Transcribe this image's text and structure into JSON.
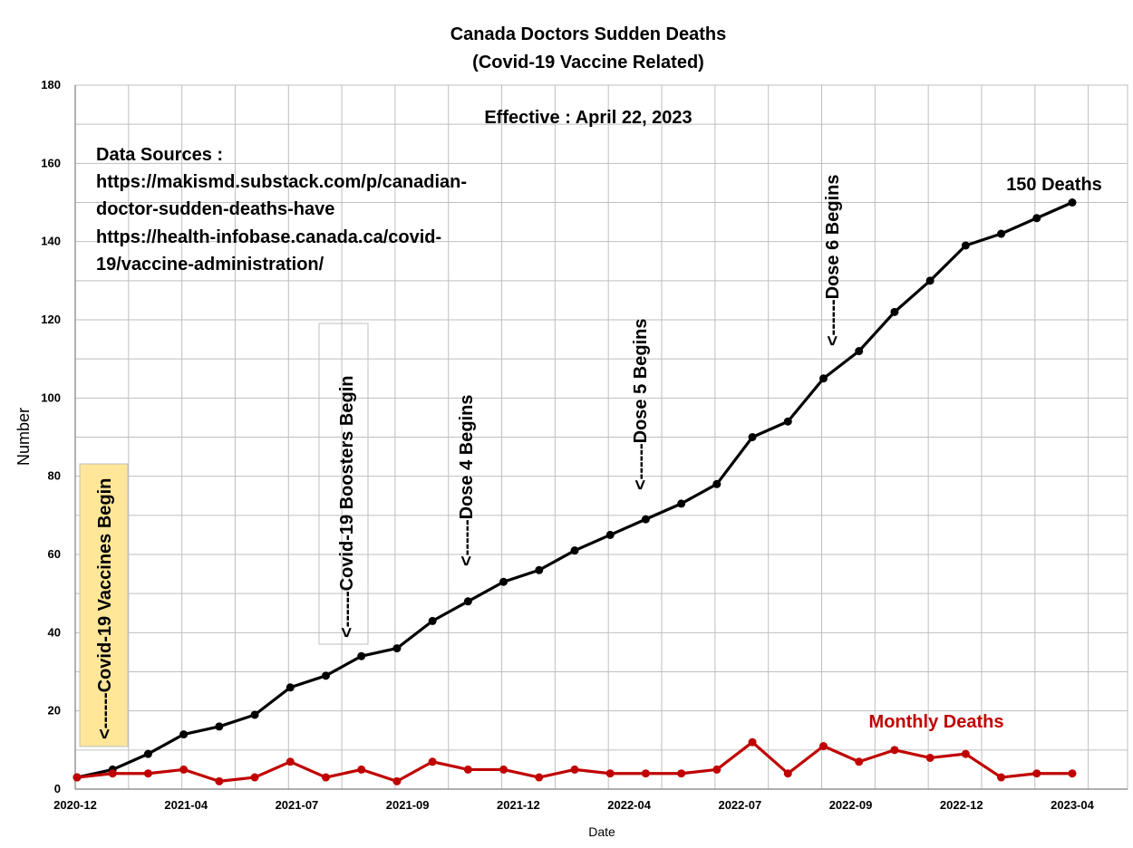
{
  "chart_data": {
    "type": "line",
    "title": "Canada Doctors Sudden Deaths",
    "subtitle": "(Covid-19 Vaccine Related)",
    "effective": "Effective : April 22, 2023",
    "xlabel": "Date",
    "ylabel": "Number",
    "ylim": [
      0,
      180
    ],
    "yticks": [
      0,
      20,
      40,
      60,
      80,
      100,
      120,
      140,
      160,
      180
    ],
    "xticks": [
      "2020-12",
      "2021-04",
      "2021-07",
      "2021-09",
      "2021-12",
      "2022-04",
      "2022-07",
      "2022-09",
      "2022-12",
      "2023-04"
    ],
    "grid": true,
    "data_sources": [
      "Data Sources :",
      "https://makismd.substack.com/p/canadian-",
      "doctor-sudden-deaths-have",
      "https://health-infobase.canada.ca/covid-",
      "19/vaccine-administration/"
    ],
    "series": [
      {
        "values": [
          3,
          5,
          9,
          14,
          16,
          19,
          26,
          29,
          34,
          36,
          43,
          48,
          53,
          56,
          61,
          65,
          69,
          73,
          78,
          90,
          94,
          105,
          112,
          122,
          130,
          139,
          142,
          146,
          150
        ],
        "color": "#000000"
      },
      {
        "name": "Monthly Deaths",
        "values": [
          3,
          4,
          4,
          5,
          2,
          3,
          7,
          3,
          5,
          2,
          7,
          5,
          5,
          3,
          5,
          4,
          4,
          4,
          5,
          12,
          4,
          11,
          7,
          10,
          8,
          9,
          3,
          4,
          4
        ],
        "color": "#c00000"
      }
    ],
    "annotations": {
      "vaccines_begin": "<------Covid-19 Vaccines Begin",
      "boosters_begin": "<------Covid-19 Boosters Begin",
      "dose4_begins": "<------Dose 4 Begins",
      "dose5_begins": "<------Dose 5 Begins",
      "dose6_begins": "<------Dose 6 Begins",
      "end_label": "150 Deaths"
    },
    "highlight_color": "#ffe699"
  }
}
